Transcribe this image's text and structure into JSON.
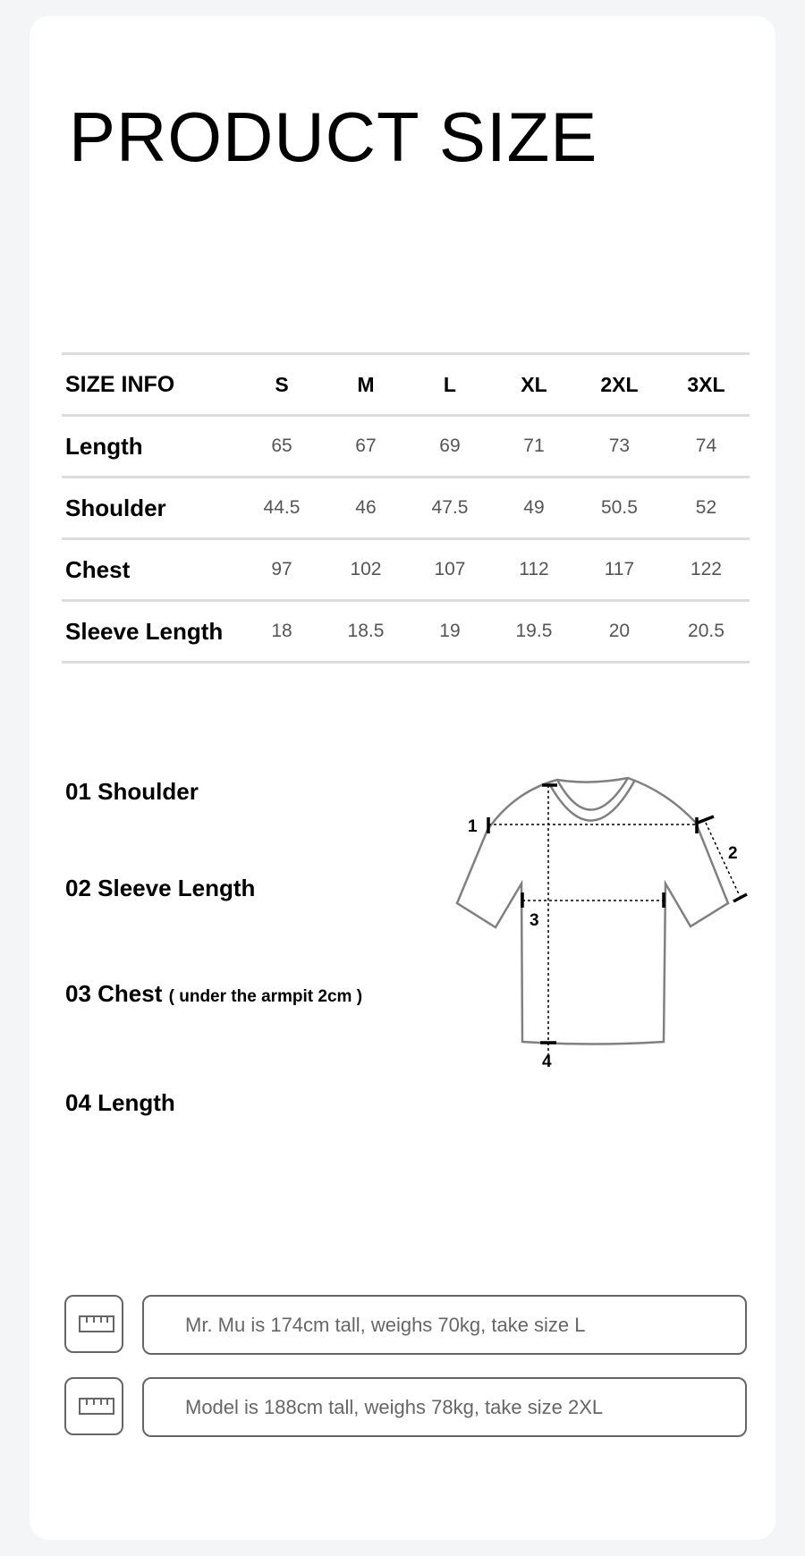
{
  "title": "PRODUCT SIZE",
  "table": {
    "header": [
      "SIZE INFO",
      "S",
      "M",
      "L",
      "XL",
      "2XL",
      "3XL"
    ],
    "rows": [
      {
        "label": "Length",
        "values": [
          "65",
          "67",
          "69",
          "71",
          "73",
          "74"
        ]
      },
      {
        "label": "Shoulder",
        "values": [
          "44.5",
          "46",
          "47.5",
          "49",
          "50.5",
          "52"
        ]
      },
      {
        "label": "Chest",
        "values": [
          "97",
          "102",
          "107",
          "112",
          "117",
          "122"
        ]
      },
      {
        "label": "Sleeve Length",
        "values": [
          "18",
          "18.5",
          "19",
          "19.5",
          "20",
          "20.5"
        ]
      }
    ]
  },
  "measures": {
    "m1": "01 Shoulder",
    "m2": "02 Sleeve Length",
    "m3": "03 Chest",
    "m3_note": "( under the armpit 2cm  )",
    "m4": "04 Length"
  },
  "diagram": {
    "n1": "1",
    "n2": "2",
    "n3": "3",
    "n4": "4"
  },
  "models": [
    {
      "icon": "ruler-icon",
      "text": "Mr. Mu is 174cm tall, weighs 70kg, take size L"
    },
    {
      "icon": "ruler-icon",
      "text": "Model is 188cm tall, weighs 78kg, take size 2XL"
    }
  ]
}
